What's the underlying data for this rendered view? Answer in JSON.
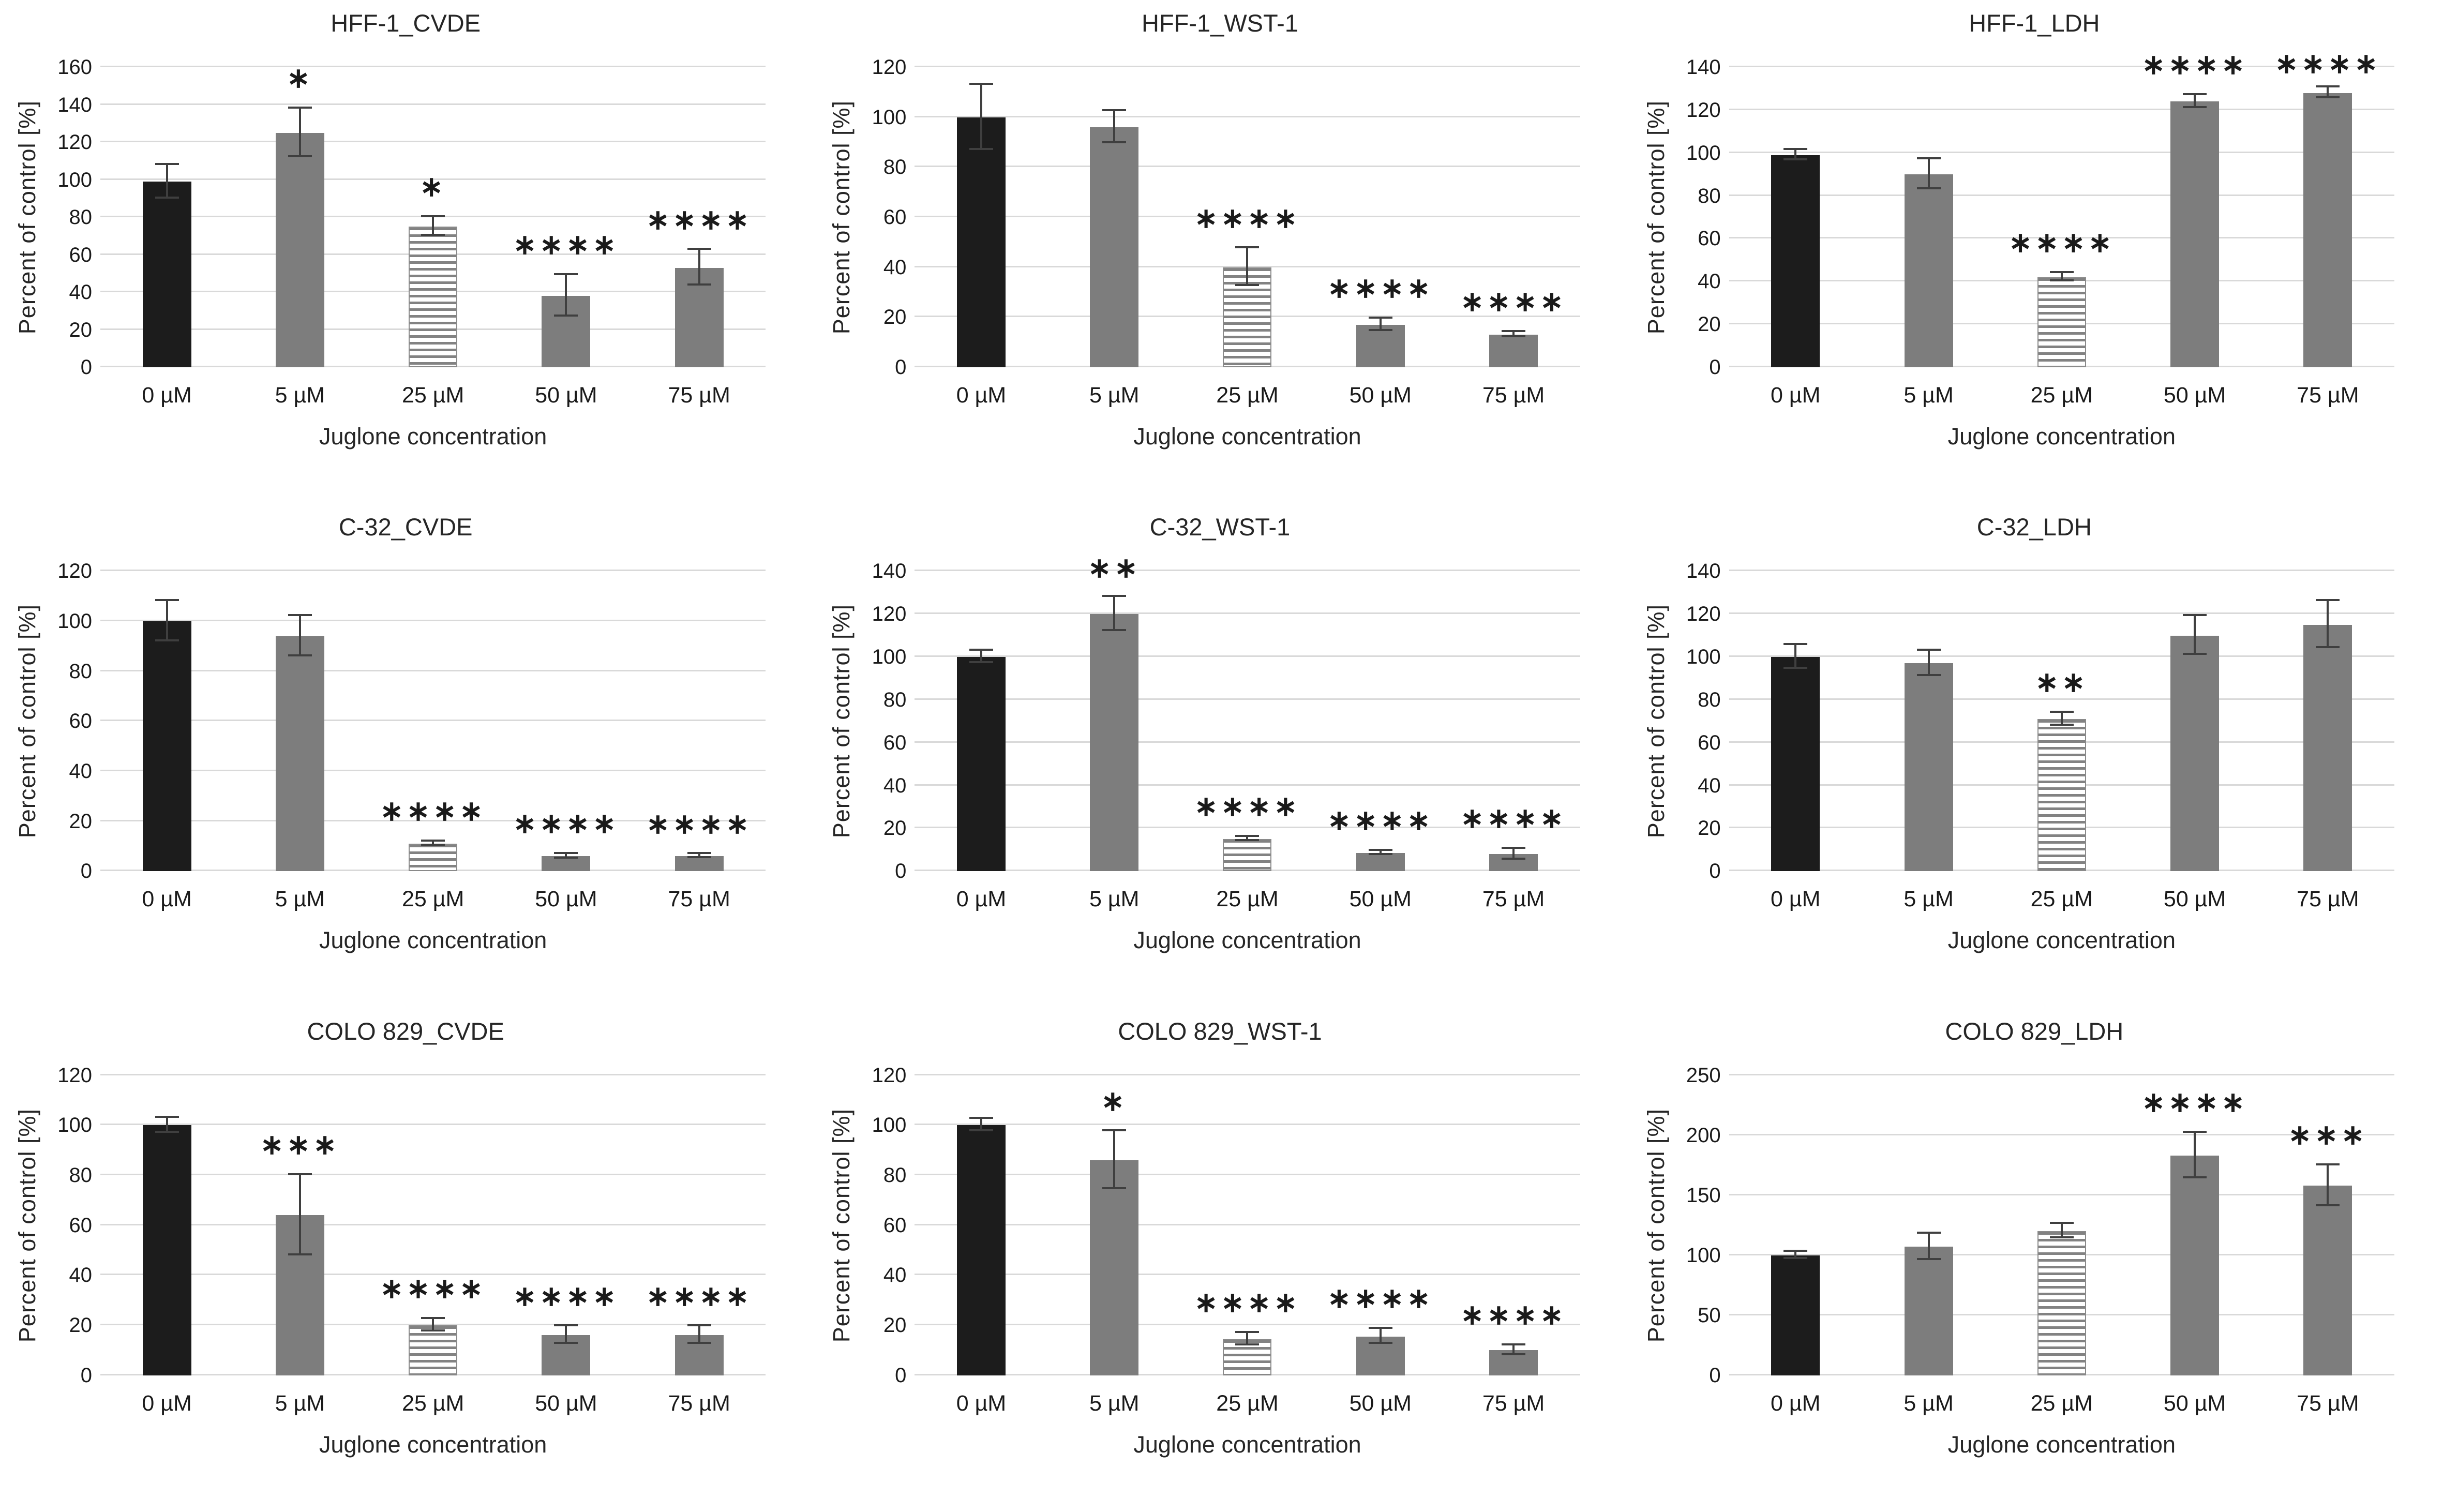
{
  "figure": {
    "background": "#ffffff",
    "rows": 3,
    "cols": 3
  },
  "colors": {
    "control_bar": "#1c1c1c",
    "treated_bar": "#7d7d7d",
    "striped_bar_stripe": "#828282",
    "gridline": "#d9d9d9",
    "error_bar": "#3f3f3f",
    "text": "#262626"
  },
  "bar_styles": [
    "solid-black",
    "solid-gray",
    "striped",
    "solid-gray",
    "solid-gray"
  ],
  "chart_data": [
    {
      "type": "bar",
      "title": "HFF-1_CVDE",
      "xlabel": "Juglone concentration",
      "ylabel": "Percent of control [%]",
      "categories": [
        "0 µM",
        "5 µM",
        "25 µM",
        "50 µM",
        "75 µM"
      ],
      "values": [
        99,
        125,
        75,
        38,
        53
      ],
      "errors": [
        9,
        13,
        5,
        11,
        9.5
      ],
      "sig": [
        "",
        "*",
        "*",
        "****",
        "****"
      ],
      "ymax": 160,
      "ytick": 20,
      "grid": true,
      "legend": "none"
    },
    {
      "type": "bar",
      "title": "HFF-1_WST-1",
      "xlabel": "Juglone concentration",
      "ylabel": "Percent of control [%]",
      "categories": [
        "0 µM",
        "5 µM",
        "25 µM",
        "50 µM",
        "75 µM"
      ],
      "values": [
        100,
        96,
        40,
        17,
        13
      ],
      "errors": [
        13,
        6.5,
        7.5,
        2.5,
        1
      ],
      "sig": [
        "",
        "",
        "****",
        "****",
        "****"
      ],
      "ymax": 120,
      "ytick": 20,
      "grid": true,
      "legend": "none"
    },
    {
      "type": "bar",
      "title": "HFF-1_LDH",
      "xlabel": "Juglone concentration",
      "ylabel": "Percent of control [%]",
      "categories": [
        "0 µM",
        "5 µM",
        "25 µM",
        "50 µM",
        "75 µM"
      ],
      "values": [
        99,
        90,
        42,
        124,
        128
      ],
      "errors": [
        2.5,
        7,
        2,
        3,
        2.5
      ],
      "sig": [
        "",
        "",
        "****",
        "****",
        "****"
      ],
      "ymax": 140,
      "ytick": 20,
      "grid": true,
      "legend": "none"
    },
    {
      "type": "bar",
      "title": "C-32_CVDE",
      "xlabel": "Juglone concentration",
      "ylabel": "Percent of control [%]",
      "categories": [
        "0 µM",
        "5 µM",
        "25 µM",
        "50 µM",
        "75 µM"
      ],
      "values": [
        100,
        94,
        11,
        6,
        6
      ],
      "errors": [
        8,
        8,
        0.8,
        1,
        0.8
      ],
      "sig": [
        "",
        "",
        "****",
        "****",
        "****"
      ],
      "ymax": 120,
      "ytick": 20,
      "grid": true,
      "legend": "none"
    },
    {
      "type": "bar",
      "title": "C-32_WST-1",
      "xlabel": "Juglone concentration",
      "ylabel": "Percent of control [%]",
      "categories": [
        "0 µM",
        "5 µM",
        "25 µM",
        "50 µM",
        "75 µM"
      ],
      "values": [
        100,
        120,
        15,
        8.5,
        8
      ],
      "errors": [
        3,
        8,
        1,
        1,
        2.5
      ],
      "sig": [
        "",
        "**",
        "****",
        "****",
        "****"
      ],
      "ymax": 140,
      "ytick": 20,
      "grid": true,
      "legend": "none"
    },
    {
      "type": "bar",
      "title": "C-32_LDH",
      "xlabel": "Juglone concentration",
      "ylabel": "Percent of control [%]",
      "categories": [
        "0 µM",
        "5 µM",
        "25 µM",
        "50 µM",
        "75 µM"
      ],
      "values": [
        100,
        97,
        71,
        110,
        115
      ],
      "errors": [
        5.5,
        6,
        3,
        9,
        11
      ],
      "sig": [
        "",
        "",
        "**",
        "",
        ""
      ],
      "ymax": 140,
      "ytick": 20,
      "grid": true,
      "legend": "none"
    },
    {
      "type": "bar",
      "title": "COLO 829_CVDE",
      "xlabel": "Juglone concentration",
      "ylabel": "Percent of control [%]",
      "categories": [
        "0 µM",
        "5 µM",
        "25 µM",
        "50 µM",
        "75 µM"
      ],
      "values": [
        100,
        64,
        20,
        16,
        16
      ],
      "errors": [
        3,
        16,
        2.5,
        3.5,
        3.5
      ],
      "sig": [
        "",
        "***",
        "****",
        "****",
        "****"
      ],
      "ymax": 120,
      "ytick": 20,
      "grid": true,
      "legend": "none"
    },
    {
      "type": "bar",
      "title": "COLO 829_WST-1",
      "xlabel": "Juglone concentration",
      "ylabel": "Percent of control [%]",
      "categories": [
        "0 µM",
        "5 µM",
        "25 µM",
        "50 µM",
        "75 µM"
      ],
      "values": [
        100,
        86,
        14.5,
        15.5,
        10
      ],
      "errors": [
        2.5,
        11.5,
        2.5,
        3,
        2
      ],
      "sig": [
        "",
        "*",
        "****",
        "****",
        "****"
      ],
      "ymax": 120,
      "ytick": 20,
      "grid": true,
      "legend": "none"
    },
    {
      "type": "bar",
      "title": "COLO 829_LDH",
      "xlabel": "Juglone concentration",
      "ylabel": "Percent of control [%]",
      "categories": [
        "0 µM",
        "5 µM",
        "25 µM",
        "50 µM",
        "75 µM"
      ],
      "values": [
        100,
        107,
        120,
        183,
        158
      ],
      "errors": [
        3,
        11,
        6,
        19,
        17
      ],
      "sig": [
        "",
        "",
        "",
        "****",
        "***"
      ],
      "ymax": 250,
      "ytick": 50,
      "grid": true,
      "legend": "none"
    }
  ]
}
